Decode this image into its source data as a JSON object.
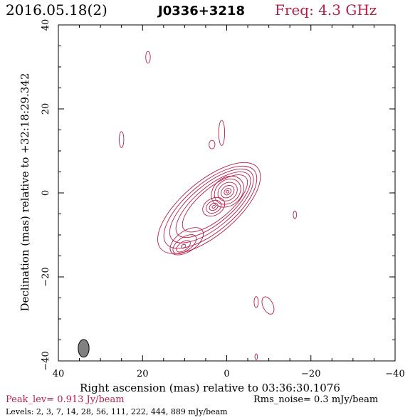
{
  "header": {
    "date": "2016.05.18(2)",
    "source": "J0336+3218",
    "freq": "Freq: 4.3 GHz"
  },
  "footer": {
    "peak": "Peak_lev=  0.913 Jy/beam",
    "rms": "Rms_noise=  0.3 mJy/beam",
    "levels": "Levels:   2,   3,   7,   14,   28,   56,  111,  222,  444,  889 mJy/beam"
  },
  "colors": {
    "contour": "#b5204a",
    "beam": "#808080"
  },
  "chart_data": {
    "type": "contour",
    "xlabel": "Right ascension (mas) relative to 03:36:30.1076",
    "ylabel": "Declination (mas) relative to +32:18:29.342",
    "xlim": [
      40,
      -40
    ],
    "ylim": [
      -40,
      40
    ],
    "xticks": [
      40,
      20,
      0,
      -20,
      -40
    ],
    "yticks": [
      -40,
      -20,
      0,
      20,
      40
    ],
    "levels_mJy_per_beam": [
      2,
      3,
      7,
      14,
      28,
      56,
      111,
      222,
      444,
      889
    ],
    "peak_Jy_per_beam": 0.913,
    "rms_noise_mJy_per_beam": 0.3,
    "components": [
      {
        "x": -0.2,
        "y": 0.3,
        "contours": 10
      },
      {
        "x": 3.1,
        "y": -3.3,
        "contours": 8
      },
      {
        "x": 10.3,
        "y": -12.7,
        "contours": 4
      }
    ],
    "beam": {
      "x": 34,
      "y": -37,
      "major_mas": 4.2,
      "minor_mas": 2.6
    }
  }
}
